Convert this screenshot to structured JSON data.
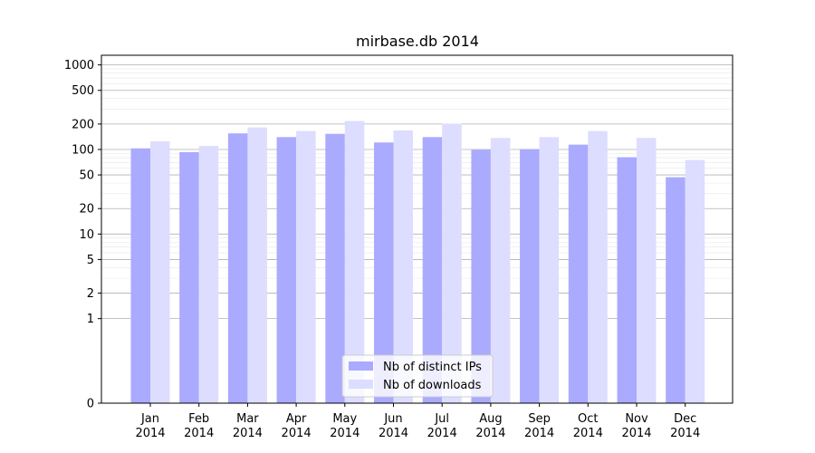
{
  "chart_data": {
    "type": "bar",
    "title": "mirbase.db 2014",
    "xlabel": "",
    "ylabel": "",
    "y_scale": "symlog",
    "ylim": [
      0,
      1300
    ],
    "y_ticks": [
      0,
      1,
      2,
      5,
      10,
      20,
      50,
      100,
      200,
      500,
      1000
    ],
    "categories": [
      {
        "month": "Jan",
        "year": "2014"
      },
      {
        "month": "Feb",
        "year": "2014"
      },
      {
        "month": "Mar",
        "year": "2014"
      },
      {
        "month": "Apr",
        "year": "2014"
      },
      {
        "month": "May",
        "year": "2014"
      },
      {
        "month": "Jun",
        "year": "2014"
      },
      {
        "month": "Jul",
        "year": "2014"
      },
      {
        "month": "Aug",
        "year": "2014"
      },
      {
        "month": "Sep",
        "year": "2014"
      },
      {
        "month": "Oct",
        "year": "2014"
      },
      {
        "month": "Nov",
        "year": "2014"
      },
      {
        "month": "Dec",
        "year": "2014"
      }
    ],
    "series": [
      {
        "name": "Nb of distinct IPs",
        "color": "#aaaaff",
        "values": [
          103,
          93,
          155,
          140,
          153,
          121,
          140,
          99,
          101,
          114,
          81,
          47
        ]
      },
      {
        "name": "Nb of downloads",
        "color": "#ddddff",
        "values": [
          125,
          110,
          182,
          165,
          217,
          168,
          202,
          137,
          140,
          165,
          137,
          75
        ]
      }
    ],
    "grid": true,
    "legend_position": "lower-center"
  }
}
